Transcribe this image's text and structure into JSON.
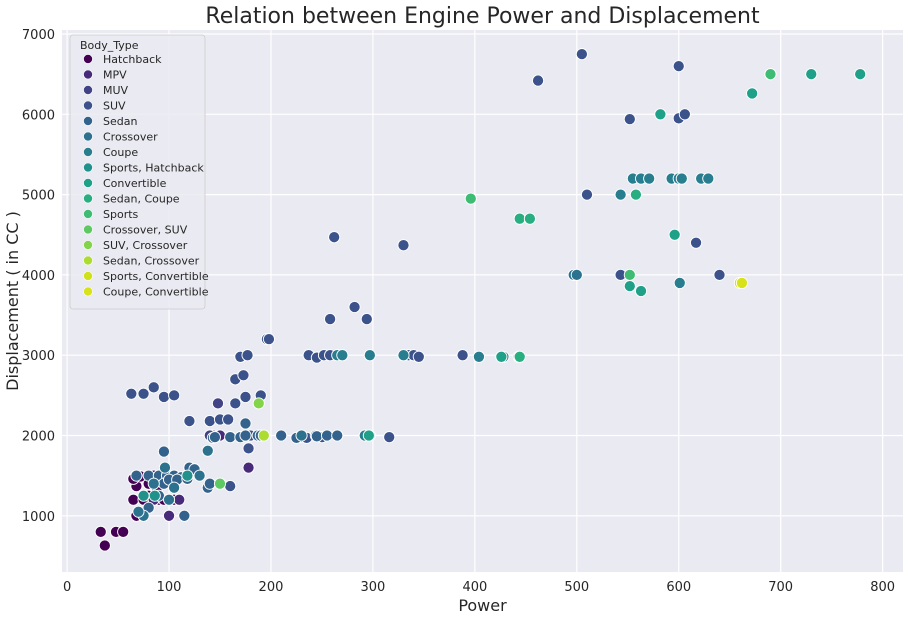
{
  "chart_data": {
    "type": "scatter",
    "title": "Relation between Engine Power and Displacement",
    "xlabel": "Power",
    "ylabel": "Displacement ( in CC )",
    "xlim": [
      -5,
      820
    ],
    "ylim": [
      300,
      7050
    ],
    "xticks": [
      0,
      100,
      200,
      300,
      400,
      500,
      600,
      700,
      800
    ],
    "yticks": [
      1000,
      2000,
      3000,
      4000,
      5000,
      6000,
      7000
    ],
    "grid": true,
    "legend": {
      "title": "Body_Type",
      "placement": "top-left"
    },
    "series": [
      {
        "name": "Hatchback",
        "color": "#440154",
        "points": [
          [
            37,
            630
          ],
          [
            33,
            800
          ],
          [
            48,
            800
          ],
          [
            55,
            800
          ],
          [
            68,
            1000
          ],
          [
            65,
            1200
          ],
          [
            75,
            1200
          ],
          [
            80,
            1250
          ],
          [
            90,
            1200
          ],
          [
            95,
            1200
          ],
          [
            105,
            1200
          ],
          [
            68,
            1370
          ],
          [
            80,
            1400
          ],
          [
            85,
            1500
          ],
          [
            88,
            1300
          ],
          [
            72,
            1490
          ],
          [
            65,
            1460
          ]
        ]
      },
      {
        "name": "MPV",
        "color": "#472a7a",
        "points": [
          [
            100,
            1000
          ],
          [
            85,
            1200
          ],
          [
            110,
            1200
          ],
          [
            178,
            1600
          ],
          [
            150,
            2000
          ],
          [
            143,
            2000
          ]
        ]
      },
      {
        "name": "MUV",
        "color": "#424286",
        "points": [
          [
            140,
            2000
          ],
          [
            148,
            2400
          ],
          [
            120,
            2180
          ]
        ]
      },
      {
        "name": "SUV",
        "color": "#3b528b",
        "points": [
          [
            63,
            2520
          ],
          [
            75,
            2520
          ],
          [
            85,
            2600
          ],
          [
            95,
            2480
          ],
          [
            105,
            2500
          ],
          [
            120,
            2180
          ],
          [
            140,
            2180
          ],
          [
            150,
            2200
          ],
          [
            158,
            2200
          ],
          [
            165,
            2400
          ],
          [
            175,
            2480
          ],
          [
            190,
            2500
          ],
          [
            165,
            2700
          ],
          [
            173,
            2750
          ],
          [
            170,
            2980
          ],
          [
            177,
            3000
          ],
          [
            196,
            3200
          ],
          [
            198,
            3200
          ],
          [
            237,
            3000
          ],
          [
            245,
            2970
          ],
          [
            252,
            3000
          ],
          [
            258,
            3000
          ],
          [
            262,
            4470
          ],
          [
            258,
            3450
          ],
          [
            282,
            3600
          ],
          [
            294,
            3450
          ],
          [
            330,
            3000
          ],
          [
            335,
            3000
          ],
          [
            340,
            3000
          ],
          [
            345,
            2980
          ],
          [
            388,
            3000
          ],
          [
            330,
            4370
          ],
          [
            462,
            6420
          ],
          [
            505,
            6750
          ],
          [
            510,
            5000
          ],
          [
            552,
            5940
          ],
          [
            600,
            6600
          ],
          [
            600,
            5950
          ],
          [
            606,
            6000
          ],
          [
            617,
            4400
          ],
          [
            640,
            4000
          ],
          [
            543,
            4000
          ],
          [
            228,
            1980
          ],
          [
            235,
            1970
          ],
          [
            250,
            1980
          ],
          [
            244,
            2000
          ],
          [
            265,
            2000
          ],
          [
            316,
            1980
          ],
          [
            180,
            2000
          ],
          [
            178,
            1840
          ],
          [
            160,
            1370
          ]
        ]
      },
      {
        "name": "Sedan",
        "color": "#33638d",
        "points": [
          [
            68,
            1500
          ],
          [
            80,
            1500
          ],
          [
            90,
            1500
          ],
          [
            98,
            1500
          ],
          [
            105,
            1500
          ],
          [
            112,
            1480
          ],
          [
            120,
            1600
          ],
          [
            125,
            1580
          ],
          [
            95,
            1400
          ],
          [
            100,
            1450
          ],
          [
            108,
            1450
          ],
          [
            118,
            1460
          ],
          [
            138,
            1350
          ],
          [
            140,
            1400
          ],
          [
            143,
            1970
          ],
          [
            145,
            1980
          ],
          [
            160,
            1980
          ],
          [
            170,
            1980
          ],
          [
            175,
            2000
          ],
          [
            187,
            2000
          ],
          [
            190,
            2000
          ],
          [
            210,
            2000
          ],
          [
            225,
            1970
          ],
          [
            245,
            1990
          ],
          [
            255,
            2000
          ],
          [
            265,
            2000
          ],
          [
            95,
            1800
          ],
          [
            175,
            2150
          ],
          [
            115,
            1000
          ],
          [
            90,
            1250
          ],
          [
            80,
            1100
          ]
        ]
      },
      {
        "name": "Crossover",
        "color": "#2c728e",
        "points": [
          [
            75,
            1000
          ],
          [
            70,
            1050
          ],
          [
            100,
            1200
          ],
          [
            105,
            1350
          ],
          [
            85,
            1400
          ],
          [
            138,
            1810
          ],
          [
            130,
            1500
          ],
          [
            96,
            1600
          ],
          [
            230,
            2000
          ],
          [
            497,
            4000
          ],
          [
            500,
            4000
          ]
        ]
      },
      {
        "name": "Coupe",
        "color": "#287d8e",
        "points": [
          [
            265,
            3000
          ],
          [
            270,
            3000
          ],
          [
            297,
            3000
          ],
          [
            330,
            3000
          ],
          [
            404,
            2980
          ],
          [
            428,
            2980
          ],
          [
            292,
            2000
          ],
          [
            297,
            2000
          ],
          [
            543,
            5000
          ],
          [
            555,
            5200
          ],
          [
            563,
            5200
          ],
          [
            571,
            5200
          ],
          [
            593,
            5200
          ],
          [
            600,
            5200
          ],
          [
            603,
            5200
          ],
          [
            622,
            5200
          ],
          [
            629,
            5200
          ],
          [
            601,
            3900
          ]
        ]
      },
      {
        "name": "Sports, Hatchback",
        "color": "#21918c",
        "points": [
          [
            86,
            1250
          ],
          [
            75,
            1250
          ],
          [
            118,
            1500
          ]
        ]
      },
      {
        "name": "Convertible",
        "color": "#1fa088",
        "points": [
          [
            296,
            2000
          ],
          [
            443,
            2980
          ],
          [
            426,
            2980
          ],
          [
            552,
            3860
          ],
          [
            563,
            3800
          ],
          [
            596,
            4500
          ],
          [
            582,
            6000
          ],
          [
            672,
            6260
          ],
          [
            690,
            6500
          ],
          [
            730,
            6500
          ],
          [
            778,
            6500
          ]
        ]
      },
      {
        "name": "Sedan, Coupe",
        "color": "#28ae80",
        "points": [
          [
            444,
            4700
          ],
          [
            454,
            4700
          ],
          [
            558,
            5000
          ],
          [
            444,
            2980
          ]
        ]
      },
      {
        "name": "Sports",
        "color": "#3fbc73",
        "points": [
          [
            396,
            4950
          ],
          [
            552,
            4000
          ],
          [
            690,
            6500
          ]
        ]
      },
      {
        "name": "Crossover, SUV",
        "color": "#5ec962",
        "points": [
          [
            150,
            1400
          ]
        ]
      },
      {
        "name": "SUV, Crossover",
        "color": "#84d44b",
        "points": [
          [
            188,
            2400
          ]
        ]
      },
      {
        "name": "Sedan, Crossover",
        "color": "#addc30",
        "points": [
          [
            193,
            2000
          ]
        ]
      },
      {
        "name": "Sports, Convertible",
        "color": "#d0e11c",
        "points": [
          [
            660,
            3900
          ]
        ]
      },
      {
        "name": "Coupe, Convertible",
        "color": "#d8e219",
        "points": [
          [
            662,
            3900
          ]
        ]
      }
    ]
  }
}
